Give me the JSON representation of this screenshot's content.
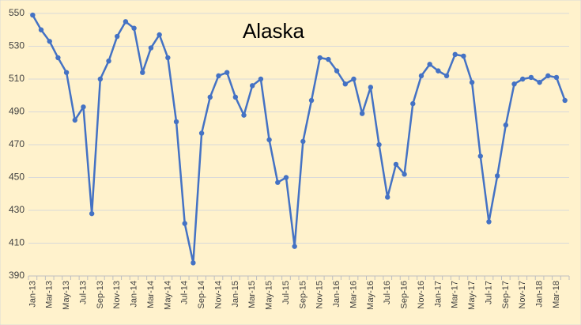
{
  "chart_data": {
    "type": "line",
    "title": "Alaska",
    "categories": [
      "Jan-13",
      null,
      "Mar-13",
      null,
      "May-13",
      null,
      "Jul-13",
      null,
      "Sep-13",
      null,
      "Nov-13",
      null,
      "Jan-14",
      null,
      "Mar-14",
      null,
      "May-14",
      null,
      "Jul-14",
      null,
      "Sep-14",
      null,
      "Nov-14",
      null,
      "Jan-15",
      null,
      "Mar-15",
      null,
      "May-15",
      null,
      "Jul-15",
      null,
      "Sep-15",
      null,
      "Nov-15",
      null,
      "Jan-16",
      null,
      "Mar-16",
      null,
      "May-16",
      null,
      "Jul-16",
      null,
      "Sep-16",
      null,
      "Nov-16",
      null,
      "Jan-17",
      null,
      "Mar-17",
      null,
      "May-17",
      null,
      "Jul-17",
      null,
      "Sep-17",
      null,
      "Nov-17",
      null,
      "Jan-18",
      null,
      "Mar-18",
      null
    ],
    "values": [
      549,
      540,
      533,
      523,
      514,
      485,
      493,
      428,
      510,
      521,
      536,
      545,
      541,
      514,
      529,
      537,
      523,
      484,
      422,
      398,
      477,
      499,
      512,
      514,
      499,
      488,
      506,
      510,
      473,
      447,
      450,
      408,
      472,
      497,
      523,
      522,
      515,
      507,
      510,
      489,
      505,
      470,
      438,
      458,
      452,
      495,
      512,
      519,
      515,
      512,
      525,
      524,
      508,
      463,
      423,
      451,
      482,
      507,
      510,
      511,
      508,
      512,
      511,
      497
    ],
    "color": "#4472c4",
    "ylim": [
      390,
      550
    ],
    "yticks": [
      390,
      410,
      430,
      450,
      470,
      490,
      510,
      530,
      550
    ],
    "grid": true
  }
}
